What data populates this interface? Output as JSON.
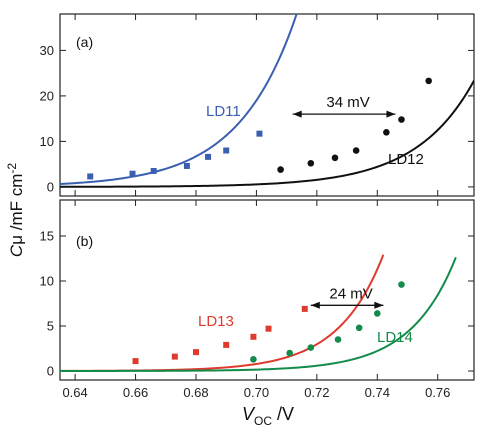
{
  "chart_data": [
    {
      "panel": "(a)",
      "type": "scatter",
      "xlabel": "V_OC /V",
      "xlim": [
        0.635,
        0.772
      ],
      "ylim": [
        -2,
        38
      ],
      "x_ticks": [
        "0.64",
        "0.66",
        "0.68",
        "0.70",
        "0.72",
        "0.74",
        "0.76"
      ],
      "y_ticks": [
        "0",
        "10",
        "20",
        "30"
      ],
      "series": [
        {
          "name": "LD11",
          "color": "#3b5fb0",
          "marker": "square",
          "points": [
            [
              0.645,
              2.3
            ],
            [
              0.659,
              2.9
            ],
            [
              0.666,
              3.5
            ],
            [
              0.677,
              4.6
            ],
            [
              0.684,
              6.6
            ],
            [
              0.69,
              8.0
            ],
            [
              0.701,
              11.7
            ]
          ],
          "fit": {
            "a": 0.6437,
            "b": 0.0192,
            "x0": 0.635,
            "x1": 0.7525
          }
        },
        {
          "name": "LD12",
          "color": "#111111",
          "marker": "circle",
          "points": [
            [
              0.708,
              3.8
            ],
            [
              0.718,
              5.2
            ],
            [
              0.726,
              6.4
            ],
            [
              0.733,
              8.0
            ],
            [
              0.743,
              12.0
            ],
            [
              0.748,
              14.8
            ],
            [
              0.757,
              23.3
            ]
          ],
          "fit": {
            "a": 0.0186,
            "b": 0.0192,
            "x0": 0.635,
            "x1": 0.772
          }
        }
      ],
      "annotations": [
        {
          "text": "LD11",
          "color": "#3b5fb0"
        },
        {
          "text": "LD12",
          "color": "#111111"
        },
        {
          "text": "34 mV",
          "color": "#111111",
          "arrow": {
            "x0": 0.712,
            "x1": 0.746,
            "y": 16
          }
        }
      ]
    },
    {
      "panel": "(b)",
      "type": "scatter",
      "xlabel": "V_OC /V",
      "xlim": [
        0.635,
        0.772
      ],
      "ylim": [
        -1,
        19
      ],
      "x_ticks": [
        "0.64",
        "0.66",
        "0.68",
        "0.70",
        "0.72",
        "0.74",
        "0.76"
      ],
      "y_ticks": [
        "0",
        "5",
        "10",
        "15"
      ],
      "series": [
        {
          "name": "LD13",
          "color": "#e03a2e",
          "marker": "square",
          "points": [
            [
              0.66,
              1.1
            ],
            [
              0.673,
              1.6
            ],
            [
              0.68,
              2.1
            ],
            [
              0.69,
              2.9
            ],
            [
              0.699,
              3.8
            ],
            [
              0.704,
              4.7
            ],
            [
              0.716,
              6.9
            ]
          ],
          "fit": {
            "a": 0.01016,
            "b": 0.01497,
            "x0": 0.635,
            "x1": 0.742
          }
        },
        {
          "name": "LD14",
          "color": "#138b4a",
          "marker": "circle",
          "points": [
            [
              0.699,
              1.3
            ],
            [
              0.711,
              2.0
            ],
            [
              0.718,
              2.6
            ],
            [
              0.727,
              3.5
            ],
            [
              0.734,
              4.8
            ],
            [
              0.74,
              6.4
            ],
            [
              0.748,
              9.6
            ]
          ],
          "fit": {
            "a": 0.002,
            "b": 0.01497,
            "x0": 0.635,
            "x1": 0.766
          }
        }
      ],
      "annotations": [
        {
          "text": "LD13",
          "color": "#e03a2e"
        },
        {
          "text": "LD14",
          "color": "#138b4a"
        },
        {
          "text": "24 mV",
          "color": "#111111",
          "arrow": {
            "x0": 0.718,
            "x1": 0.742,
            "y": 7.3
          }
        }
      ]
    }
  ],
  "labels": {
    "panel_a": "(a)",
    "panel_b": "(b)",
    "ylabel_main": "C",
    "ylabel_sub": "μ",
    "ylabel_unit": " /mF cm",
    "ylabel_exp": "-2",
    "xlabel_main": "V",
    "xlabel_sub": "OC",
    "xlabel_unit": " /V"
  }
}
